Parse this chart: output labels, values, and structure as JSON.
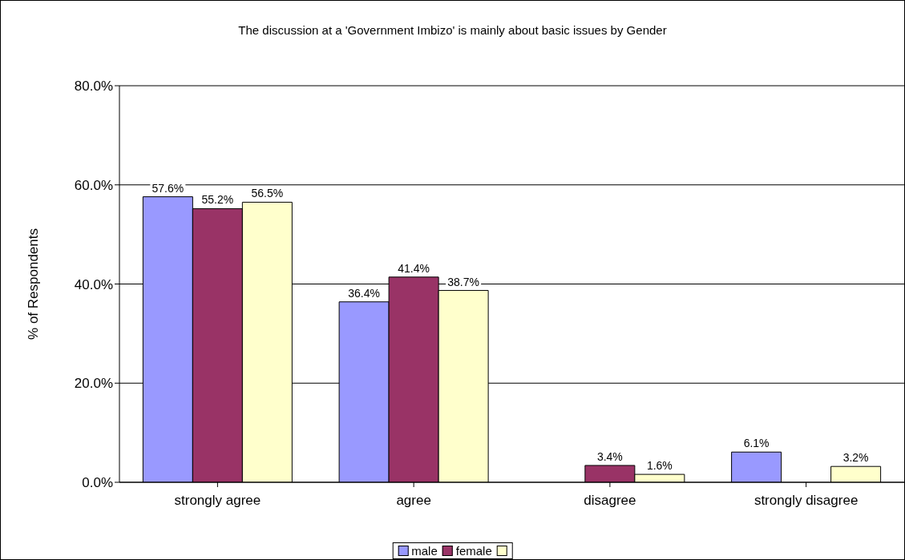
{
  "chart_data": {
    "type": "bar",
    "title": "The discussion at a 'Government Imbizo' is mainly about basic issues by Gender",
    "ylabel": "% of Respondents",
    "categories": [
      "strongly agree",
      "agree",
      "disagree",
      "strongly disagree"
    ],
    "series": [
      {
        "name": "male",
        "color": "#9999ff",
        "values": [
          57.6,
          36.4,
          null,
          6.1
        ],
        "value_labels": [
          "57.6%",
          "36.4%",
          null,
          "6.1%"
        ]
      },
      {
        "name": "female",
        "color": "#993366",
        "values": [
          55.2,
          41.4,
          3.4,
          null
        ],
        "value_labels": [
          "55.2%",
          "41.4%",
          "3.4%",
          null
        ]
      },
      {
        "color": "#ffffcc",
        "values": [
          56.5,
          38.7,
          1.6,
          3.2
        ],
        "value_labels": [
          "56.5%",
          "38.7%",
          "1.6%",
          "3.2%"
        ]
      }
    ],
    "ylim": [
      0,
      80
    ],
    "yticks": [
      {
        "value": 0,
        "label": "0.0%"
      },
      {
        "value": 20,
        "label": "20.0%"
      },
      {
        "value": 40,
        "label": "40.0%"
      },
      {
        "value": 60,
        "label": "60.0%"
      },
      {
        "value": 80,
        "label": "80.0%"
      }
    ],
    "grid": "y",
    "legend": "bottom"
  }
}
